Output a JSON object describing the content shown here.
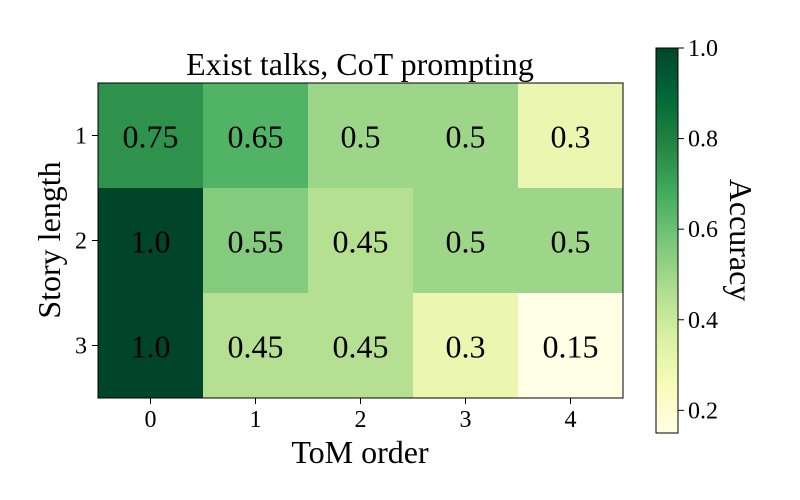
{
  "chart_data": {
    "type": "heatmap",
    "title": "Exist talks, CoT prompting",
    "xlabel": "ToM order",
    "ylabel": "Story length",
    "x_ticks": [
      "0",
      "1",
      "2",
      "3",
      "4"
    ],
    "y_ticks": [
      "1",
      "2",
      "3"
    ],
    "values": [
      [
        0.75,
        0.65,
        0.5,
        0.5,
        0.3
      ],
      [
        1.0,
        0.55,
        0.45,
        0.5,
        0.5
      ],
      [
        1.0,
        0.45,
        0.45,
        0.3,
        0.15
      ]
    ],
    "cell_labels": [
      [
        "0.75",
        "0.65",
        "0.5",
        "0.5",
        "0.3"
      ],
      [
        "1.0",
        "0.55",
        "0.45",
        "0.5",
        "0.5"
      ],
      [
        "1.0",
        "0.45",
        "0.45",
        "0.3",
        "0.15"
      ]
    ],
    "colorbar": {
      "label": "Accuracy",
      "range": [
        0.15,
        1.0
      ],
      "ticks": [
        "0.2",
        "0.4",
        "0.6",
        "0.8",
        "1.0"
      ],
      "tick_values": [
        0.2,
        0.4,
        0.6,
        0.8,
        1.0
      ],
      "colormap": "YlGn"
    }
  }
}
